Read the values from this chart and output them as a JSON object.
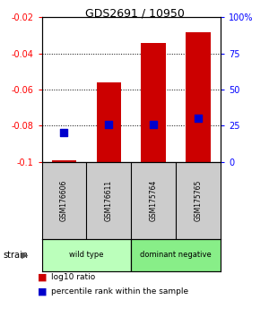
{
  "title": "GDS2691 / 10950",
  "samples": [
    "GSM176606",
    "GSM176611",
    "GSM175764",
    "GSM175765"
  ],
  "log10_ratio": [
    -0.099,
    -0.056,
    -0.034,
    -0.028
  ],
  "log10_ratio_base": -0.1,
  "percentile_rank": [
    20,
    26,
    26,
    30
  ],
  "ylim_left": [
    -0.1,
    -0.02
  ],
  "ylim_right": [
    0,
    100
  ],
  "yticks_left": [
    -0.1,
    -0.08,
    -0.06,
    -0.04,
    -0.02
  ],
  "yticks_right": [
    0,
    25,
    50,
    75,
    100
  ],
  "ytick_labels_left": [
    "-0.1",
    "-0.08",
    "-0.06",
    "-0.04",
    "-0.02"
  ],
  "ytick_labels_right": [
    "0",
    "25",
    "50",
    "75",
    "100%"
  ],
  "groups": [
    {
      "label": "wild type",
      "samples": [
        0,
        1
      ],
      "color": "#bbffbb"
    },
    {
      "label": "dominant negative",
      "samples": [
        2,
        3
      ],
      "color": "#88ee88"
    }
  ],
  "bar_color": "#cc0000",
  "dot_color": "#0000cc",
  "bar_width": 0.55,
  "background_color": "#ffffff",
  "plot_bg": "#ffffff",
  "label_box_color": "#cccccc"
}
